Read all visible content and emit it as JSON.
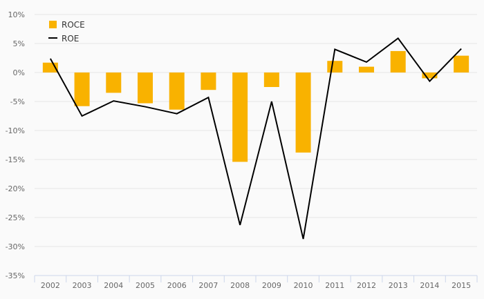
{
  "chart_data": {
    "type": "bar",
    "categories": [
      "2002",
      "2003",
      "2004",
      "2005",
      "2006",
      "2007",
      "2008",
      "2009",
      "2010",
      "2011",
      "2012",
      "2013",
      "2014",
      "2015"
    ],
    "series": [
      {
        "name": "ROCE",
        "type": "bar",
        "color": "#f9b200",
        "values": [
          1.7,
          -5.8,
          -3.5,
          -5.3,
          -6.4,
          -3.0,
          -15.4,
          -2.5,
          -13.8,
          2.0,
          1.0,
          3.7,
          -1.0,
          2.9
        ]
      },
      {
        "name": "ROE",
        "type": "line",
        "color": "#000000",
        "values": [
          2.4,
          -7.5,
          -4.9,
          -5.9,
          -7.1,
          -4.3,
          -26.3,
          -5.0,
          -28.7,
          4.0,
          1.8,
          5.9,
          -1.5,
          4.1
        ]
      }
    ],
    "y_ticks": [
      "10%",
      "5%",
      "0%",
      "-5%",
      "-10%",
      "-15%",
      "-20%",
      "-25%",
      "-30%",
      "-35%"
    ],
    "ylim": [
      -35,
      10
    ],
    "y_step": 5,
    "grid": true,
    "legend_position": "top-left"
  }
}
